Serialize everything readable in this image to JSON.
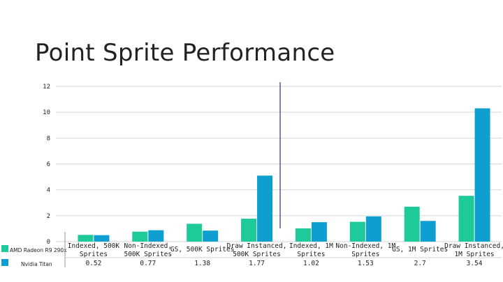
{
  "slide": {
    "title": "Point Sprite Performance"
  },
  "chart_data": {
    "type": "bar",
    "categories": [
      [
        "Indexed, 500K",
        "Sprites"
      ],
      [
        "Non-Indexed,",
        "500K Sprites"
      ],
      [
        "GS, 500K Sprites"
      ],
      [
        "Draw Instanced,",
        "500K Sprites"
      ],
      [
        "Indexed, 1M",
        "Sprites"
      ],
      [
        "Non-Indexed, 1M",
        "Sprites"
      ],
      [
        "GS, 1M Sprites"
      ],
      [
        "Draw Instanced,",
        "1M Sprites"
      ]
    ],
    "series": [
      {
        "name": "AMD Radeon R9 290x",
        "color": "#1ec99a",
        "values": [
          0.52,
          0.77,
          1.38,
          1.77,
          1.02,
          1.53,
          2.7,
          3.54
        ]
      },
      {
        "name": "Nvidia Titan",
        "color": "#0e9fd0",
        "values": [
          0.5,
          0.88,
          0.85,
          5.1,
          1.5,
          1.95,
          1.6,
          10.3
        ]
      }
    ],
    "table_values": [
      "0.52",
      "0.77",
      "1.38",
      "1.77",
      "1.02",
      "1.53",
      "2.7",
      "3.54"
    ],
    "yticks": [
      "0",
      "2",
      "4",
      "6",
      "8",
      "10",
      "12"
    ],
    "ylim": [
      0,
      12
    ],
    "grid": true,
    "legend": "bottom-left"
  }
}
